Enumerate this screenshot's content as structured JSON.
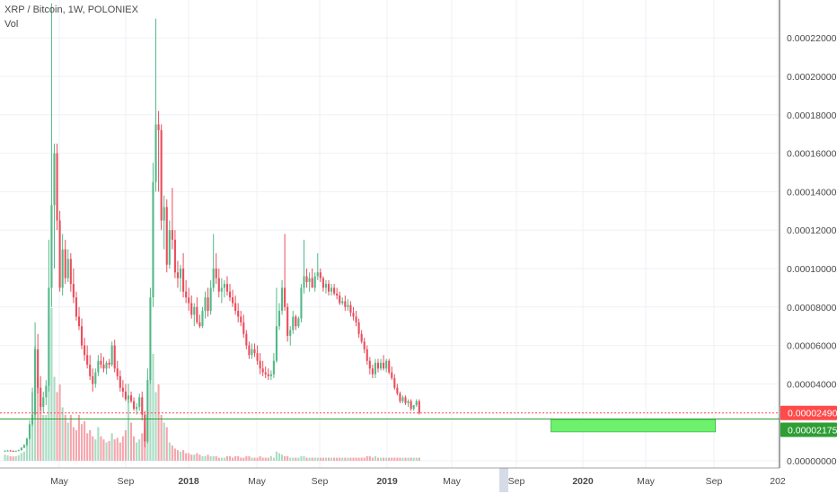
{
  "header": {
    "symbol": "XRP / Bitcoin, 1W, POLONIEX",
    "volume_label": "Vol"
  },
  "colors": {
    "up": "#53b987",
    "down": "#eb4d5c",
    "current_line": "#ff4a4a",
    "support_line": "#2e9e35",
    "zone": "#6ef26e",
    "grid": "#eef1f5",
    "axis": "#4a4a4a",
    "axis_hl": "#d6dce6"
  },
  "chart_data": {
    "type": "candlestick",
    "title": "XRP / Bitcoin, 1W, POLONIEX",
    "ylim": [
      0,
      0.000238
    ],
    "y_ticks": [
      "0.00022000",
      "0.00020000",
      "0.00018000",
      "0.00016000",
      "0.00014000",
      "0.00012000",
      "0.00010000",
      "0.00008000",
      "0.00006000",
      "0.00004000",
      "0.00000000"
    ],
    "x_ticks": [
      "May",
      "Sep",
      "2018",
      "May",
      "Sep",
      "2019",
      "May",
      "Sep",
      "2020",
      "May",
      "Sep",
      "202"
    ],
    "current_price": {
      "label": "0.00002490",
      "value": 2.49e-05
    },
    "support_level": {
      "label": "0.00002175",
      "value": 2.175e-05
    },
    "support_zone": {
      "from_week": 199,
      "to_week": 259,
      "low": 1.5e-05,
      "high": 2.15e-05
    },
    "candles_ohlc": [
      [
        5e-06,
        5.5e-06,
        4.8e-06,
        5.2e-06
      ],
      [
        5.2e-06,
        5.6e-06,
        5e-06,
        5.3e-06
      ],
      [
        5.3e-06,
        5.7e-06,
        5e-06,
        5.1e-06
      ],
      [
        5.1e-06,
        5.4e-06,
        4.8e-06,
        4.9e-06
      ],
      [
        4.9e-06,
        5.3e-06,
        4.7e-06,
        5.2e-06
      ],
      [
        5.2e-06,
        5.8e-06,
        5e-06,
        5.5e-06
      ],
      [
        5.5e-06,
        7e-06,
        5.3e-06,
        6.8e-06
      ],
      [
        6.8e-06,
        8.6e-06,
        6.5e-06,
        8.2e-06
      ],
      [
        8.2e-06,
        1.2e-05,
        7.8e-06,
        1.15e-05
      ],
      [
        1.15e-05,
        2.1e-05,
        1.1e-05,
        1.9e-05
      ],
      [
        1.9e-05,
        3.8e-05,
        1.8e-05,
        2.4e-05
      ],
      [
        2.4e-05,
        7.2e-05,
        2.2e-05,
        5.8e-05
      ],
      [
        5.8e-05,
        6.6e-05,
        3.5e-05,
        3.8e-05
      ],
      [
        3.8e-05,
        4.4e-05,
        2.6e-05,
        2.8e-05
      ],
      [
        2.8e-05,
        3.6e-05,
        2.5e-05,
        3.3e-05
      ],
      [
        3.3e-05,
        4.2e-05,
        2.9e-05,
        3.9e-05
      ],
      [
        3.9e-05,
        0.000115,
        3.6e-05,
        9e-05
      ],
      [
        9e-05,
        0.000238,
        8e-05,
        0.000133
      ],
      [
        0.000133,
        0.000165,
        0.0001,
        0.00016
      ],
      [
        0.00016,
        0.000165,
        0.00012,
        0.000125
      ],
      [
        0.000125,
        0.00013,
        8.8e-05,
        9e-05
      ],
      [
        9e-05,
        0.000118,
        8.6e-05,
        0.00011
      ],
      [
        0.00011,
        0.000115,
        9.2e-05,
        9.5e-05
      ],
      [
        9.5e-05,
        0.00011,
        9.3e-05,
        0.000105
      ],
      [
        0.000105,
        0.000108,
        8.8e-05,
        9.2e-05
      ],
      [
        9.2e-05,
        0.0001,
        8.2e-05,
        8.5e-05
      ],
      [
        8.5e-05,
        8.8e-05,
        7.3e-05,
        7.5e-05
      ],
      [
        7.5e-05,
        8e-05,
        6.8e-05,
        7e-05
      ],
      [
        7e-05,
        7.4e-05,
        5.8e-05,
        6e-05
      ],
      [
        6e-05,
        6.4e-05,
        5.2e-05,
        5.5e-05
      ],
      [
        5.5e-05,
        6e-05,
        4.8e-05,
        5e-05
      ],
      [
        5e-05,
        5.5e-05,
        4.2e-05,
        4.4e-05
      ],
      [
        4.4e-05,
        4.8e-05,
        3.6e-05,
        4e-05
      ],
      [
        4e-05,
        4.8e-05,
        3.8e-05,
        4.6e-05
      ],
      [
        4.6e-05,
        5.5e-05,
        4.4e-05,
        5.2e-05
      ],
      [
        5.2e-05,
        5.6e-05,
        4.8e-05,
        5e-05
      ],
      [
        5e-05,
        5.4e-05,
        4.6e-05,
        4.8e-05
      ],
      [
        4.8e-05,
        5.2e-05,
        4.5e-05,
        5.1e-05
      ],
      [
        5.1e-05,
        5.3e-05,
        4.8e-05,
        5e-05
      ],
      [
        5e-05,
        6.2e-05,
        4.9e-05,
        6e-05
      ],
      [
        6e-05,
        6.3e-05,
        4.6e-05,
        4.8e-05
      ],
      [
        4.8e-05,
        5.2e-05,
        4.2e-05,
        4.4e-05
      ],
      [
        4.4e-05,
        4.7e-05,
        3.6e-05,
        3.8e-05
      ],
      [
        3.8e-05,
        4.2e-05,
        3.3e-05,
        3.6e-05
      ],
      [
        3.6e-05,
        4e-05,
        3.1e-05,
        3.2e-05
      ],
      [
        3.2e-05,
        4e-05,
        3e-05,
        3.4e-05
      ],
      [
        3.4e-05,
        3.6e-05,
        3e-05,
        3.1e-05
      ],
      [
        3.1e-05,
        3.3e-05,
        2.6e-05,
        2.7e-05
      ],
      [
        2.7e-05,
        3e-05,
        2.4e-05,
        2.8e-05
      ],
      [
        2.8e-05,
        3.5e-05,
        2.6e-05,
        3.3e-05
      ],
      [
        3.3e-05,
        3.6e-05,
        2.1e-05,
        2.4e-05
      ],
      [
        2.4e-05,
        2.6e-05,
        7e-06,
        1e-05
      ],
      [
        1e-05,
        4.8e-05,
        9e-06,
        4.2e-05
      ],
      [
        4.2e-05,
        9e-05,
        4e-05,
        8.5e-05
      ],
      [
        8.5e-05,
        0.000155,
        8e-05,
        0.000145
      ],
      [
        0.000145,
        0.00023,
        0.00014,
        0.000175
      ],
      [
        0.000175,
        0.000182,
        0.00014,
        0.000172
      ],
      [
        0.000172,
        0.000175,
        0.00012,
        0.000125
      ],
      [
        0.000125,
        0.000138,
        0.00011,
        0.000132
      ],
      [
        0.000132,
        0.000136,
        9.8e-05,
        0.000102
      ],
      [
        0.000102,
        0.000125,
        0.0001,
        0.00012
      ],
      [
        0.00012,
        0.000142,
        0.00011,
        0.000115
      ],
      [
        0.000115,
        0.00012,
        9.5e-05,
        9.8e-05
      ],
      [
        9.8e-05,
        0.000104,
        9e-05,
        9.5e-05
      ],
      [
        9.5e-05,
        0.000102,
        8.8e-05,
        0.0001
      ],
      [
        0.0001,
        0.000108,
        8.5e-05,
        8.8e-05
      ],
      [
        8.8e-05,
        9.4e-05,
        8.2e-05,
        8.5e-05
      ],
      [
        8.5e-05,
        9e-05,
        7.8e-05,
        8.2e-05
      ],
      [
        8.2e-05,
        8.6e-05,
        7.4e-05,
        7.6e-05
      ],
      [
        7.6e-05,
        8.2e-05,
        7e-05,
        8e-05
      ],
      [
        8e-05,
        8.5e-05,
        7.1e-05,
        7.2e-05
      ],
      [
        7.2e-05,
        7.6e-05,
        6.9e-05,
        7e-05
      ],
      [
        7e-05,
        8e-05,
        6.9e-05,
        7.8e-05
      ],
      [
        7.8e-05,
        8.8e-05,
        7.4e-05,
        8.5e-05
      ],
      [
        8.5e-05,
        9e-05,
        7.5e-05,
        7.8e-05
      ],
      [
        7.8e-05,
        9.4e-05,
        7.6e-05,
        9e-05
      ],
      [
        9e-05,
        0.000118,
        8.8e-05,
        0.0001
      ],
      [
        0.0001,
        0.000108,
        9.2e-05,
        9.5e-05
      ],
      [
        9.5e-05,
        0.0001,
        8.5e-05,
        8.8e-05
      ],
      [
        8.8e-05,
        9.5e-05,
        8.2e-05,
        9e-05
      ],
      [
        9e-05,
        9.4e-05,
        8.5e-05,
        9.2e-05
      ],
      [
        9.2e-05,
        9.6e-05,
        8.6e-05,
        8.8e-05
      ],
      [
        8.8e-05,
        9.2e-05,
        8.3e-05,
        8.5e-05
      ],
      [
        8.5e-05,
        8.9e-05,
        8e-05,
        8.2e-05
      ],
      [
        8.2e-05,
        8.6e-05,
        7.6e-05,
        7.8e-05
      ],
      [
        7.8e-05,
        8.2e-05,
        7.2e-05,
        7.5e-05
      ],
      [
        7.5e-05,
        7.8e-05,
        7e-05,
        7.2e-05
      ],
      [
        7.2e-05,
        7.6e-05,
        6.4e-05,
        6.6e-05
      ],
      [
        6.6e-05,
        6.8e-05,
        5.8e-05,
        6e-05
      ],
      [
        6e-05,
        6.2e-05,
        5.3e-05,
        5.5e-05
      ],
      [
        5.5e-05,
        6.1e-05,
        5.3e-05,
        5.8e-05
      ],
      [
        5.8e-05,
        6.1e-05,
        5.4e-05,
        5.6e-05
      ],
      [
        5.6e-05,
        6e-05,
        5e-05,
        5.2e-05
      ],
      [
        5.2e-05,
        5.6e-05,
        4.5e-05,
        4.8e-05
      ],
      [
        4.8e-05,
        5.2e-05,
        4.4e-05,
        4.6e-05
      ],
      [
        4.6e-05,
        4.9e-05,
        4.3e-05,
        4.5e-05
      ],
      [
        4.5e-05,
        4.8e-05,
        4.2e-05,
        4.4e-05
      ],
      [
        4.4e-05,
        4.7e-05,
        4.2e-05,
        4.5e-05
      ],
      [
        4.5e-05,
        5.6e-05,
        4.3e-05,
        5.2e-05
      ],
      [
        5.2e-05,
        9e-05,
        5.1e-05,
        7e-05
      ],
      [
        7e-05,
        8.2e-05,
        6.8e-05,
        7.8e-05
      ],
      [
        7.8e-05,
        9.4e-05,
        7.6e-05,
        9e-05
      ],
      [
        9e-05,
        0.000118,
        7.8e-05,
        8e-05
      ],
      [
        8e-05,
        8.2e-05,
        6.2e-05,
        6.5e-05
      ],
      [
        6.5e-05,
        7e-05,
        6e-05,
        6.8e-05
      ],
      [
        6.8e-05,
        7.8e-05,
        6.6e-05,
        7.5e-05
      ],
      [
        7.5e-05,
        7.6e-05,
        6.8e-05,
        7e-05
      ],
      [
        7e-05,
        7.5e-05,
        6.9e-05,
        7.4e-05
      ],
      [
        7.4e-05,
        9.2e-05,
        7.2e-05,
        9e-05
      ],
      [
        9e-05,
        0.000115,
        8.7e-05,
        9.6e-05
      ],
      [
        9.6e-05,
        0.0001,
        9e-05,
        9.3e-05
      ],
      [
        9.3e-05,
        9.8e-05,
        8.8e-05,
        9.5e-05
      ],
      [
        9.5e-05,
        0.0001,
        9e-05,
        9e-05
      ],
      [
        9e-05,
        9.8e-05,
        8.8e-05,
        9.6e-05
      ],
      [
        9.6e-05,
        0.000108,
        9.4e-05,
        9.8e-05
      ],
      [
        9.8e-05,
        0.0001,
        9.3e-05,
        9.5e-05
      ],
      [
        9.5e-05,
        9.6e-05,
        8.8e-05,
        9e-05
      ],
      [
        9e-05,
        9.4e-05,
        8.7e-05,
        9.2e-05
      ],
      [
        9.2e-05,
        9.4e-05,
        8.6e-05,
        8.8e-05
      ],
      [
        8.8e-05,
        9.2e-05,
        8.6e-05,
        9e-05
      ],
      [
        9e-05,
        9.2e-05,
        8.6e-05,
        8.7e-05
      ],
      [
        8.7e-05,
        9e-05,
        8.4e-05,
        8.6e-05
      ],
      [
        8.6e-05,
        8.8e-05,
        8.1e-05,
        8.2e-05
      ],
      [
        8.2e-05,
        8.5e-05,
        8.1e-05,
        8.3e-05
      ],
      [
        8.3e-05,
        8.6e-05,
        7.8e-05,
        8e-05
      ],
      [
        8e-05,
        8.4e-05,
        7.8e-05,
        8.1e-05
      ],
      [
        8.1e-05,
        8.3e-05,
        7.5e-05,
        7.7e-05
      ],
      [
        7.7e-05,
        8e-05,
        7.3e-05,
        7.5e-05
      ],
      [
        7.5e-05,
        7.8e-05,
        7e-05,
        7.2e-05
      ],
      [
        7.2e-05,
        7.4e-05,
        6.4e-05,
        6.6e-05
      ],
      [
        6.6e-05,
        6.8e-05,
        6.1e-05,
        6.2e-05
      ],
      [
        6.2e-05,
        6.4e-05,
        5.6e-05,
        5.8e-05
      ],
      [
        5.8e-05,
        6e-05,
        5e-05,
        5.2e-05
      ],
      [
        5.2e-05,
        5.4e-05,
        4.5e-05,
        4.8e-05
      ],
      [
        4.8e-05,
        5e-05,
        4.3e-05,
        4.5e-05
      ],
      [
        4.5e-05,
        5.3e-05,
        4.3e-05,
        5.1e-05
      ],
      [
        5.1e-05,
        5.3e-05,
        4.6e-05,
        4.8e-05
      ],
      [
        4.8e-05,
        5.3e-05,
        4.7e-05,
        5.1e-05
      ],
      [
        5.1e-05,
        5.5e-05,
        4.7e-05,
        4.8e-05
      ],
      [
        4.8e-05,
        5.3e-05,
        4.6e-05,
        5.2e-05
      ],
      [
        5.2e-05,
        5.3e-05,
        4.5e-05,
        4.6e-05
      ],
      [
        4.6e-05,
        4.9e-05,
        4.2e-05,
        4.3e-05
      ],
      [
        4.3e-05,
        4.5e-05,
        3.7e-05,
        3.8e-05
      ],
      [
        3.8e-05,
        4e-05,
        3.4e-05,
        3.5e-05
      ],
      [
        3.5e-05,
        3.6e-05,
        3e-05,
        3.1e-05
      ],
      [
        3.1e-05,
        3.4e-05,
        3e-05,
        3.3e-05
      ],
      [
        3.3e-05,
        3.4e-05,
        2.9e-05,
        3e-05
      ],
      [
        3e-05,
        3.2e-05,
        2.8e-05,
        3.1e-05
      ],
      [
        3.1e-05,
        3.2e-05,
        2.6e-05,
        2.7e-05
      ],
      [
        2.7e-05,
        2.9e-05,
        2.6e-05,
        2.9e-05
      ],
      [
        2.9e-05,
        3.2e-05,
        2.8e-05,
        3.1e-05
      ],
      [
        3.1e-05,
        3.2e-05,
        2.4e-05,
        2.49e-05
      ]
    ],
    "volume": [
      0.04,
      0.035,
      0.03,
      0.028,
      0.03,
      0.035,
      0.05,
      0.06,
      0.12,
      0.2,
      0.45,
      0.75,
      0.55,
      0.38,
      0.3,
      0.3,
      0.95,
      1.0,
      0.55,
      0.45,
      0.5,
      0.35,
      0.3,
      0.25,
      0.3,
      0.22,
      0.2,
      0.3,
      0.24,
      0.26,
      0.18,
      0.2,
      0.16,
      0.14,
      0.22,
      0.16,
      0.14,
      0.12,
      0.13,
      0.18,
      0.14,
      0.15,
      0.12,
      0.16,
      0.2,
      0.42,
      0.25,
      0.16,
      0.12,
      0.14,
      0.18,
      0.22,
      0.3,
      0.55,
      0.7,
      0.45,
      0.5,
      0.3,
      0.25,
      0.22,
      0.12,
      0.1,
      0.08,
      0.07,
      0.06,
      0.07,
      0.05,
      0.05,
      0.04,
      0.04,
      0.05,
      0.04,
      0.03,
      0.03,
      0.04,
      0.03,
      0.03,
      0.03,
      0.02,
      0.02,
      0.02,
      0.03,
      0.03,
      0.02,
      0.03,
      0.03,
      0.02,
      0.02,
      0.03,
      0.03,
      0.02,
      0.02,
      0.02,
      0.03,
      0.02,
      0.02,
      0.02,
      0.03,
      0.02,
      0.06,
      0.05,
      0.04,
      0.03,
      0.03,
      0.02,
      0.02,
      0.02,
      0.02,
      0.03,
      0.03,
      0.02,
      0.02,
      0.02,
      0.02,
      0.02,
      0.02,
      0.02,
      0.02,
      0.02,
      0.02,
      0.02,
      0.02,
      0.02,
      0.02,
      0.02,
      0.02,
      0.02,
      0.02,
      0.02,
      0.02,
      0.02,
      0.02,
      0.03,
      0.03,
      0.02,
      0.03,
      0.02,
      0.02,
      0.02,
      0.02,
      0.02,
      0.02,
      0.02,
      0.02,
      0.02,
      0.02,
      0.02,
      0.02,
      0.02,
      0.02,
      0.02,
      0.02
    ]
  }
}
